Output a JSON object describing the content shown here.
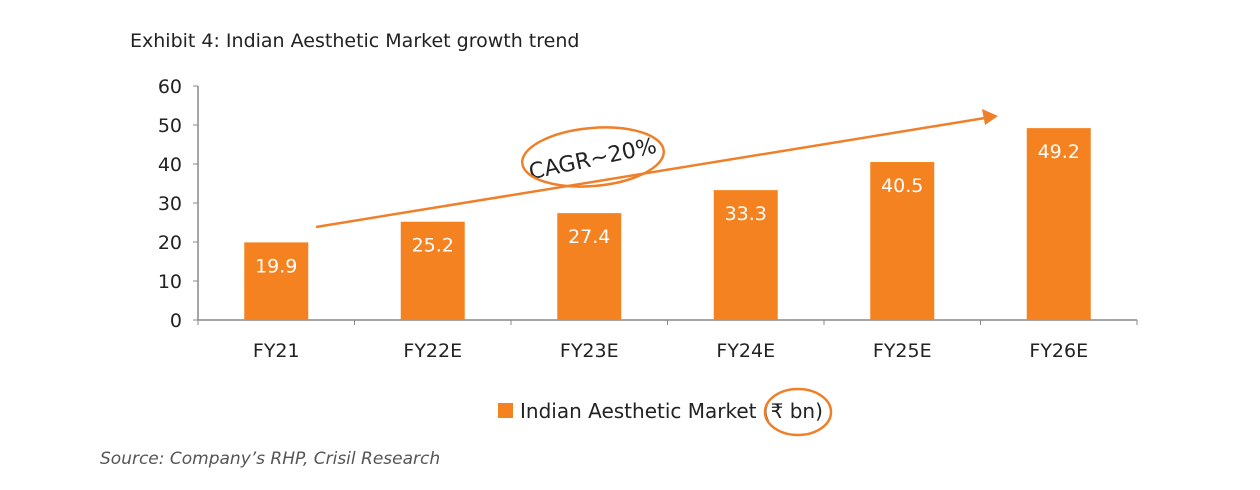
{
  "chart_data": {
    "type": "bar",
    "title": "Exhibit 4: Indian Aesthetic Market growth trend",
    "categories": [
      "FY21",
      "FY22E",
      "FY23E",
      "FY24E",
      "FY25E",
      "FY26E"
    ],
    "series": [
      {
        "name": "Indian Aesthetic Market (₹ bn)",
        "values": [
          19.9,
          25.2,
          27.4,
          33.3,
          40.5,
          49.2
        ],
        "color": "#F58220"
      }
    ],
    "data_labels": [
      "19.9",
      "25.2",
      "27.4",
      "33.3",
      "40.5",
      "49.2"
    ],
    "ylim": [
      0,
      60
    ],
    "yticks": [
      0,
      10,
      20,
      30,
      40,
      50,
      60
    ],
    "grid": false,
    "legend_placement": "bottom",
    "annotation": "CAGR~20%",
    "annotation_color": "#F07F2A",
    "source": "Source: Company’s RHP, Crisil Research"
  }
}
